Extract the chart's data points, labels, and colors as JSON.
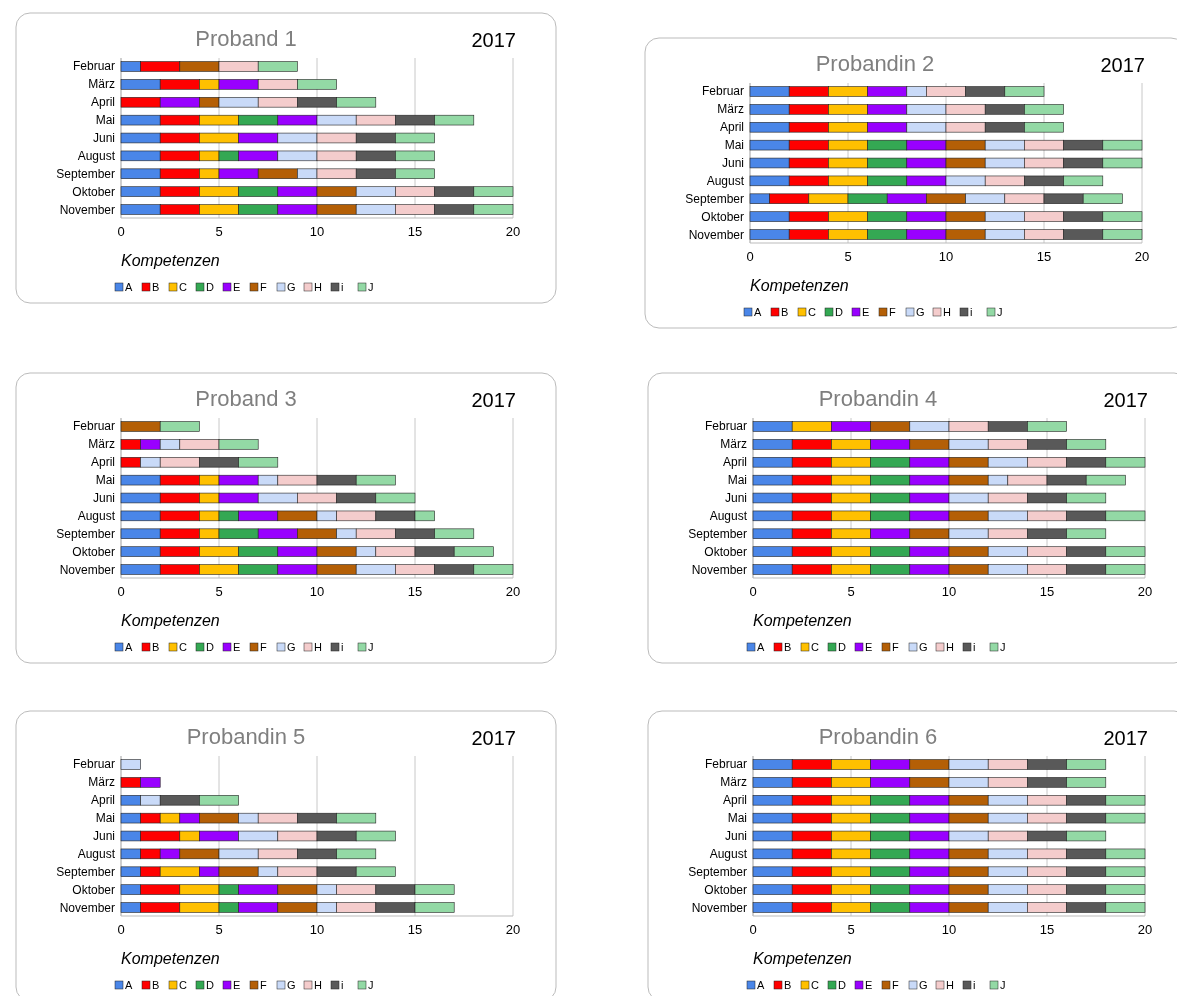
{
  "chart_data": [
    {
      "type": "bar",
      "orientation": "horizontal",
      "stacked": true,
      "title": "Proband 1",
      "xlabel": "Kompetenzen",
      "annotations": [
        "2017"
      ],
      "categories": [
        "Februar",
        "März",
        "April",
        "Mai",
        "Juni",
        "August",
        "September",
        "Oktober",
        "November"
      ],
      "xlim": [
        0,
        20
      ],
      "xticks": [
        0,
        5,
        10,
        15,
        20
      ],
      "grid": "x",
      "legend": "bottom",
      "series": [
        {
          "name": "A",
          "color": "#4a86e8",
          "values": [
            1,
            2,
            0,
            2,
            2,
            2,
            2,
            2,
            2
          ]
        },
        {
          "name": "B",
          "color": "#ff0000",
          "values": [
            2,
            2,
            2,
            2,
            2,
            2,
            2,
            2,
            2
          ]
        },
        {
          "name": "C",
          "color": "#ffc000",
          "values": [
            0,
            1,
            0,
            2,
            2,
            1,
            1,
            2,
            2
          ]
        },
        {
          "name": "D",
          "color": "#34a853",
          "values": [
            0,
            0,
            0,
            2,
            0,
            1,
            0,
            2,
            2
          ]
        },
        {
          "name": "E",
          "color": "#9900ff",
          "values": [
            0,
            2,
            2,
            2,
            2,
            2,
            2,
            2,
            2
          ]
        },
        {
          "name": "F",
          "color": "#b45f06",
          "values": [
            2,
            0,
            1,
            0,
            0,
            0,
            2,
            2,
            2
          ]
        },
        {
          "name": "G",
          "color": "#c9daf8",
          "values": [
            0,
            0,
            2,
            2,
            2,
            2,
            1,
            2,
            2
          ]
        },
        {
          "name": "H",
          "color": "#f4cccc",
          "values": [
            2,
            2,
            2,
            2,
            2,
            2,
            2,
            2,
            2
          ]
        },
        {
          "name": "i",
          "color": "#595959",
          "values": [
            0,
            0,
            2,
            2,
            2,
            2,
            2,
            2,
            2
          ]
        },
        {
          "name": "J",
          "color": "#93d9a5",
          "values": [
            2,
            2,
            2,
            2,
            2,
            2,
            2,
            2,
            2
          ]
        }
      ]
    },
    {
      "type": "bar",
      "orientation": "horizontal",
      "stacked": true,
      "title": "Probandin 2",
      "xlabel": "Kompetenzen",
      "annotations": [
        "2017"
      ],
      "categories": [
        "Februar",
        "März",
        "April",
        "Mai",
        "Juni",
        "August",
        "September",
        "Oktober",
        "November"
      ],
      "xlim": [
        0,
        20
      ],
      "xticks": [
        0,
        5,
        10,
        15,
        20
      ],
      "grid": "x",
      "legend": "bottom",
      "series": [
        {
          "name": "A",
          "color": "#4a86e8",
          "values": [
            2,
            2,
            2,
            2,
            2,
            2,
            1,
            2,
            2
          ]
        },
        {
          "name": "B",
          "color": "#ff0000",
          "values": [
            2,
            2,
            2,
            2,
            2,
            2,
            2,
            2,
            2
          ]
        },
        {
          "name": "C",
          "color": "#ffc000",
          "values": [
            2,
            2,
            2,
            2,
            2,
            2,
            2,
            2,
            2
          ]
        },
        {
          "name": "D",
          "color": "#34a853",
          "values": [
            0,
            0,
            0,
            2,
            2,
            2,
            2,
            2,
            2
          ]
        },
        {
          "name": "E",
          "color": "#9900ff",
          "values": [
            2,
            2,
            2,
            2,
            2,
            2,
            2,
            2,
            2
          ]
        },
        {
          "name": "F",
          "color": "#b45f06",
          "values": [
            0,
            0,
            0,
            2,
            2,
            0,
            2,
            2,
            2
          ]
        },
        {
          "name": "G",
          "color": "#c9daf8",
          "values": [
            1,
            2,
            2,
            2,
            2,
            2,
            2,
            2,
            2
          ]
        },
        {
          "name": "H",
          "color": "#f4cccc",
          "values": [
            2,
            2,
            2,
            2,
            2,
            2,
            2,
            2,
            2
          ]
        },
        {
          "name": "i",
          "color": "#595959",
          "values": [
            2,
            2,
            2,
            2,
            2,
            2,
            2,
            2,
            2
          ]
        },
        {
          "name": "J",
          "color": "#93d9a5",
          "values": [
            2,
            2,
            2,
            2,
            2,
            2,
            2,
            2,
            2
          ]
        }
      ]
    },
    {
      "type": "bar",
      "orientation": "horizontal",
      "stacked": true,
      "title": "Proband 3",
      "xlabel": "Kompetenzen",
      "annotations": [
        "2017"
      ],
      "categories": [
        "Februar",
        "März",
        "April",
        "Mai",
        "Juni",
        "August",
        "September",
        "Oktober",
        "November"
      ],
      "xlim": [
        0,
        20
      ],
      "xticks": [
        0,
        5,
        10,
        15,
        20
      ],
      "grid": "x",
      "legend": "bottom",
      "series": [
        {
          "name": "A",
          "color": "#4a86e8",
          "values": [
            0,
            0,
            0,
            2,
            2,
            2,
            2,
            2,
            2
          ]
        },
        {
          "name": "B",
          "color": "#ff0000",
          "values": [
            0,
            1,
            1,
            2,
            2,
            2,
            2,
            2,
            2
          ]
        },
        {
          "name": "C",
          "color": "#ffc000",
          "values": [
            0,
            0,
            0,
            1,
            1,
            1,
            1,
            2,
            2
          ]
        },
        {
          "name": "D",
          "color": "#34a853",
          "values": [
            0,
            0,
            0,
            0,
            0,
            1,
            2,
            2,
            2
          ]
        },
        {
          "name": "E",
          "color": "#9900ff",
          "values": [
            0,
            1,
            0,
            2,
            2,
            2,
            2,
            2,
            2
          ]
        },
        {
          "name": "F",
          "color": "#b45f06",
          "values": [
            2,
            0,
            0,
            0,
            0,
            2,
            2,
            2,
            2
          ]
        },
        {
          "name": "G",
          "color": "#c9daf8",
          "values": [
            0,
            1,
            1,
            1,
            2,
            1,
            1,
            1,
            2
          ]
        },
        {
          "name": "H",
          "color": "#f4cccc",
          "values": [
            0,
            2,
            2,
            2,
            2,
            2,
            2,
            2,
            2
          ]
        },
        {
          "name": "i",
          "color": "#595959",
          "values": [
            0,
            0,
            2,
            2,
            2,
            2,
            2,
            2,
            2
          ]
        },
        {
          "name": "J",
          "color": "#93d9a5",
          "values": [
            2,
            2,
            2,
            2,
            2,
            1,
            2,
            2,
            2
          ]
        }
      ]
    },
    {
      "type": "bar",
      "orientation": "horizontal",
      "stacked": true,
      "title": "Probandin 4",
      "xlabel": "Kompetenzen",
      "annotations": [
        "2017"
      ],
      "categories": [
        "Februar",
        "März",
        "April",
        "Mai",
        "Juni",
        "August",
        "September",
        "Oktober",
        "November"
      ],
      "xlim": [
        0,
        20
      ],
      "xticks": [
        0,
        5,
        10,
        15,
        20
      ],
      "grid": "x",
      "legend": "bottom",
      "series": [
        {
          "name": "A",
          "color": "#4a86e8",
          "values": [
            2,
            2,
            2,
            2,
            2,
            2,
            2,
            2,
            2
          ]
        },
        {
          "name": "B",
          "color": "#ff0000",
          "values": [
            0,
            2,
            2,
            2,
            2,
            2,
            2,
            2,
            2
          ]
        },
        {
          "name": "C",
          "color": "#ffc000",
          "values": [
            2,
            2,
            2,
            2,
            2,
            2,
            2,
            2,
            2
          ]
        },
        {
          "name": "D",
          "color": "#34a853",
          "values": [
            0,
            0,
            2,
            2,
            2,
            2,
            0,
            2,
            2
          ]
        },
        {
          "name": "E",
          "color": "#9900ff",
          "values": [
            2,
            2,
            2,
            2,
            2,
            2,
            2,
            2,
            2
          ]
        },
        {
          "name": "F",
          "color": "#b45f06",
          "values": [
            2,
            2,
            2,
            2,
            0,
            2,
            2,
            2,
            2
          ]
        },
        {
          "name": "G",
          "color": "#c9daf8",
          "values": [
            2,
            2,
            2,
            1,
            2,
            2,
            2,
            2,
            2
          ]
        },
        {
          "name": "H",
          "color": "#f4cccc",
          "values": [
            2,
            2,
            2,
            2,
            2,
            2,
            2,
            2,
            2
          ]
        },
        {
          "name": "i",
          "color": "#595959",
          "values": [
            2,
            2,
            2,
            2,
            2,
            2,
            2,
            2,
            2
          ]
        },
        {
          "name": "J",
          "color": "#93d9a5",
          "values": [
            2,
            2,
            2,
            2,
            2,
            2,
            2,
            2,
            2
          ]
        }
      ]
    },
    {
      "type": "bar",
      "orientation": "horizontal",
      "stacked": true,
      "title": "Probandin 5",
      "xlabel": "Kompetenzen",
      "annotations": [
        "2017"
      ],
      "categories": [
        "Februar",
        "März",
        "April",
        "Mai",
        "Juni",
        "August",
        "September",
        "Oktober",
        "November"
      ],
      "xlim": [
        0,
        20
      ],
      "xticks": [
        0,
        5,
        10,
        15,
        20
      ],
      "grid": "x",
      "legend": "bottom",
      "series": [
        {
          "name": "A",
          "color": "#4a86e8",
          "values": [
            0,
            0,
            1,
            1,
            1,
            1,
            1,
            1,
            1
          ]
        },
        {
          "name": "B",
          "color": "#ff0000",
          "values": [
            0,
            1,
            0,
            1,
            2,
            1,
            1,
            2,
            2
          ]
        },
        {
          "name": "C",
          "color": "#ffc000",
          "values": [
            0,
            0,
            0,
            1,
            1,
            0,
            2,
            2,
            2
          ]
        },
        {
          "name": "D",
          "color": "#34a853",
          "values": [
            0,
            0,
            0,
            0,
            0,
            0,
            0,
            1,
            1
          ]
        },
        {
          "name": "E",
          "color": "#9900ff",
          "values": [
            0,
            1,
            0,
            1,
            2,
            1,
            1,
            2,
            2
          ]
        },
        {
          "name": "F",
          "color": "#b45f06",
          "values": [
            0,
            0,
            0,
            2,
            0,
            2,
            2,
            2,
            2
          ]
        },
        {
          "name": "G",
          "color": "#c9daf8",
          "values": [
            1,
            0,
            1,
            1,
            2,
            2,
            1,
            1,
            1
          ]
        },
        {
          "name": "H",
          "color": "#f4cccc",
          "values": [
            0,
            0,
            0,
            2,
            2,
            2,
            2,
            2,
            2
          ]
        },
        {
          "name": "i",
          "color": "#595959",
          "values": [
            0,
            0,
            2,
            2,
            2,
            2,
            2,
            2,
            2
          ]
        },
        {
          "name": "J",
          "color": "#93d9a5",
          "values": [
            0,
            0,
            2,
            2,
            2,
            2,
            2,
            2,
            2
          ]
        }
      ]
    },
    {
      "type": "bar",
      "orientation": "horizontal",
      "stacked": true,
      "title": "Probandin 6",
      "xlabel": "Kompetenzen",
      "annotations": [
        "2017"
      ],
      "categories": [
        "Februar",
        "März",
        "April",
        "Mai",
        "Juni",
        "August",
        "September",
        "Oktober",
        "November"
      ],
      "xlim": [
        0,
        20
      ],
      "xticks": [
        0,
        5,
        10,
        15,
        20
      ],
      "grid": "x",
      "legend": "bottom",
      "series": [
        {
          "name": "A",
          "color": "#4a86e8",
          "values": [
            2,
            2,
            2,
            2,
            2,
            2,
            2,
            2,
            2
          ]
        },
        {
          "name": "B",
          "color": "#ff0000",
          "values": [
            2,
            2,
            2,
            2,
            2,
            2,
            2,
            2,
            2
          ]
        },
        {
          "name": "C",
          "color": "#ffc000",
          "values": [
            2,
            2,
            2,
            2,
            2,
            2,
            2,
            2,
            2
          ]
        },
        {
          "name": "D",
          "color": "#34a853",
          "values": [
            0,
            0,
            2,
            2,
            2,
            2,
            2,
            2,
            2
          ]
        },
        {
          "name": "E",
          "color": "#9900ff",
          "values": [
            2,
            2,
            2,
            2,
            2,
            2,
            2,
            2,
            2
          ]
        },
        {
          "name": "F",
          "color": "#b45f06",
          "values": [
            2,
            2,
            2,
            2,
            0,
            2,
            2,
            2,
            2
          ]
        },
        {
          "name": "G",
          "color": "#c9daf8",
          "values": [
            2,
            2,
            2,
            2,
            2,
            2,
            2,
            2,
            2
          ]
        },
        {
          "name": "H",
          "color": "#f4cccc",
          "values": [
            2,
            2,
            2,
            2,
            2,
            2,
            2,
            2,
            2
          ]
        },
        {
          "name": "i",
          "color": "#595959",
          "values": [
            2,
            2,
            2,
            2,
            2,
            2,
            2,
            2,
            2
          ]
        },
        {
          "name": "J",
          "color": "#93d9a5",
          "values": [
            2,
            2,
            2,
            2,
            2,
            2,
            2,
            2,
            2
          ]
        }
      ]
    }
  ]
}
